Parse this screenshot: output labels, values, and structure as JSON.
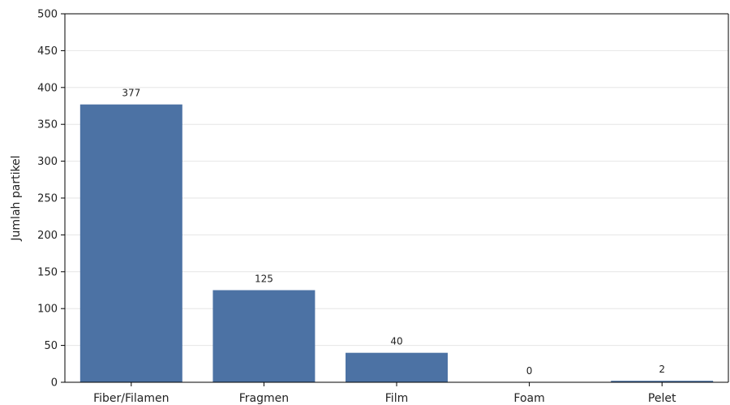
{
  "chart_data": {
    "type": "bar",
    "categories": [
      "Fiber/Filamen",
      "Fragmen",
      "Film",
      "Foam",
      "Pelet"
    ],
    "values": [
      377,
      125,
      40,
      0,
      2
    ],
    "data_labels": [
      "377",
      "125",
      "40",
      "0",
      "2"
    ],
    "title": "",
    "xlabel": "",
    "ylabel": "Jumlah partikel",
    "ylim": [
      0,
      500
    ],
    "yticks": [
      0,
      50,
      100,
      150,
      200,
      250,
      300,
      350,
      400,
      450,
      500
    ],
    "ytick_labels": [
      "0",
      "50",
      "100",
      "150",
      "200",
      "250",
      "300",
      "350",
      "400",
      "450",
      "500"
    ],
    "grid": "horizontal",
    "bar_color": "#4c72a4"
  }
}
